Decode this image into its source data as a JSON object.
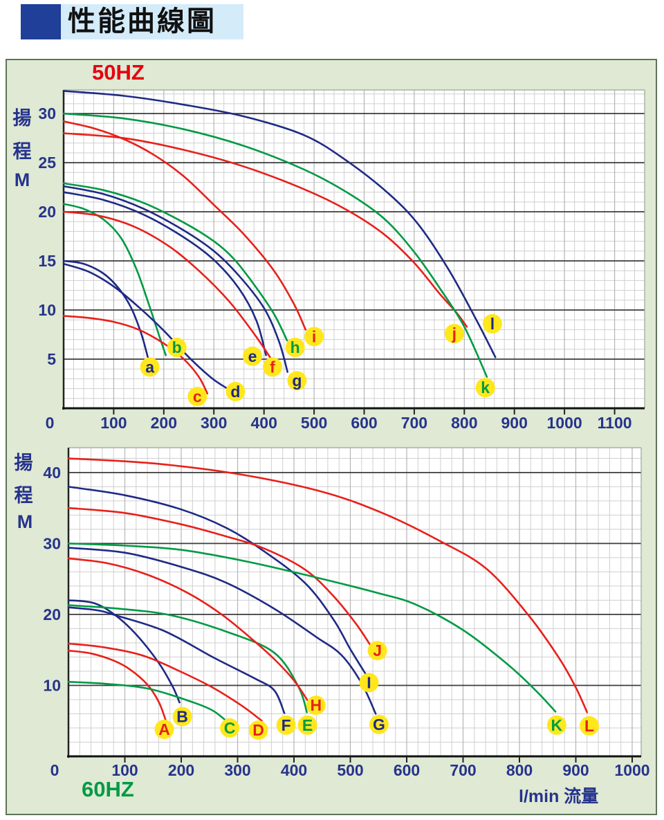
{
  "title": "性能曲線圖",
  "colors": {
    "navy": "#1e2a85",
    "green": "#009a44",
    "red": "#e8201a",
    "label_circle": "#ffe71c",
    "axis_text": "#26338c",
    "grid_minor": "#cfcfcf",
    "grid_100": "#b4b4b4",
    "grid_major": "#3c3c3c",
    "panel_bg": "#dfe9d3",
    "title_band": "#d4ebfa",
    "title_square": "#203f99",
    "hz50": "#e60012",
    "hz60": "#009a44"
  },
  "chart_data": [
    {
      "type": "line",
      "title": "50HZ",
      "ylabel_chars": [
        "揚",
        "程"
      ],
      "ylabel_unit": "M",
      "xlabel": "",
      "x_unit": "l/min",
      "xlim": [
        0,
        1160
      ],
      "ylim": [
        0,
        32.4
      ],
      "x_ticks": [
        0,
        100,
        200,
        300,
        400,
        500,
        600,
        700,
        800,
        900,
        1000,
        1100
      ],
      "y_ticks": [
        5,
        10,
        15,
        20,
        25,
        30
      ],
      "grid": {
        "minor_x": 20,
        "minor_y": 1,
        "major_y": 5,
        "x_major": 100
      },
      "series": [
        {
          "name": "a",
          "color": "navy",
          "label_pos": [
            172,
            4.2
          ],
          "points": [
            [
              0,
              15
            ],
            [
              40,
              14.7
            ],
            [
              80,
              13.7
            ],
            [
              110,
              12.2
            ],
            [
              135,
              10.2
            ],
            [
              155,
              7.6
            ],
            [
              168,
              5.2
            ]
          ]
        },
        {
          "name": "b",
          "color": "green",
          "label_pos": [
            226,
            6.2
          ],
          "points": [
            [
              0,
              20.8
            ],
            [
              40,
              20.3
            ],
            [
              80,
              19.2
            ],
            [
              115,
              17.3
            ],
            [
              145,
              14.2
            ],
            [
              170,
              10.6
            ],
            [
              192,
              7.2
            ],
            [
              204,
              5.4
            ]
          ]
        },
        {
          "name": "c",
          "color": "red",
          "label_pos": [
            267,
            1.2
          ],
          "points": [
            [
              0,
              9.4
            ],
            [
              50,
              9.2
            ],
            [
              100,
              8.8
            ],
            [
              150,
              8
            ],
            [
              200,
              6.6
            ],
            [
              240,
              5
            ],
            [
              270,
              3.2
            ],
            [
              287,
              1.5
            ]
          ]
        },
        {
          "name": "d",
          "color": "navy",
          "label_pos": [
            343,
            1.7
          ],
          "points": [
            [
              0,
              14.7
            ],
            [
              50,
              13.9
            ],
            [
              100,
              12.4
            ],
            [
              150,
              10.3
            ],
            [
              200,
              7.9
            ],
            [
              250,
              5.2
            ],
            [
              295,
              3.1
            ],
            [
              327,
              2
            ]
          ]
        },
        {
          "name": "e",
          "color": "navy",
          "label_pos": [
            377,
            5.3
          ],
          "points": [
            [
              0,
              22
            ],
            [
              80,
              21.2
            ],
            [
              160,
              19.7
            ],
            [
              240,
              17.4
            ],
            [
              300,
              15.1
            ],
            [
              350,
              12.2
            ],
            [
              385,
              8.9
            ],
            [
              404,
              5.4
            ]
          ]
        },
        {
          "name": "f",
          "color": "red",
          "label_pos": [
            417,
            4.2
          ],
          "points": [
            [
              0,
              20
            ],
            [
              70,
              19.6
            ],
            [
              140,
              18.5
            ],
            [
              210,
              16.5
            ],
            [
              270,
              14
            ],
            [
              330,
              10.9
            ],
            [
              380,
              7.6
            ],
            [
              412,
              5.2
            ],
            [
              425,
              4.1
            ]
          ]
        },
        {
          "name": "g",
          "color": "navy",
          "label_pos": [
            466,
            2.8
          ],
          "points": [
            [
              0,
              22.6
            ],
            [
              80,
              21.8
            ],
            [
              160,
              20.3
            ],
            [
              240,
              18.1
            ],
            [
              300,
              16
            ],
            [
              350,
              13.5
            ],
            [
              400,
              10.2
            ],
            [
              430,
              6.8
            ],
            [
              447,
              3.7
            ]
          ]
        },
        {
          "name": "h",
          "color": "green",
          "label_pos": [
            462,
            6.2
          ],
          "points": [
            [
              0,
              22.9
            ],
            [
              80,
              22.2
            ],
            [
              160,
              20.9
            ],
            [
              240,
              18.9
            ],
            [
              300,
              17
            ],
            [
              340,
              15.2
            ],
            [
              380,
              12.6
            ],
            [
              420,
              9.6
            ],
            [
              446,
              6.9
            ]
          ]
        },
        {
          "name": "i",
          "color": "red",
          "label_pos": [
            500,
            7.3
          ],
          "points": [
            [
              0,
              29.2
            ],
            [
              60,
              28.5
            ],
            [
              120,
              27.4
            ],
            [
              180,
              25.8
            ],
            [
              240,
              23.6
            ],
            [
              300,
              20.7
            ],
            [
              360,
              17.7
            ],
            [
              420,
              14
            ],
            [
              460,
              10.6
            ],
            [
              483,
              8
            ]
          ]
        },
        {
          "name": "j",
          "color": "red",
          "label_pos": [
            780,
            7.6
          ],
          "points": [
            [
              0,
              28
            ],
            [
              120,
              27.5
            ],
            [
              240,
              26.3
            ],
            [
              360,
              24.6
            ],
            [
              480,
              22.3
            ],
            [
              565,
              20.2
            ],
            [
              640,
              17.7
            ],
            [
              700,
              14.8
            ],
            [
              750,
              11.7
            ],
            [
              785,
              9.7
            ],
            [
              805,
              8.3
            ]
          ]
        },
        {
          "name": "k",
          "color": "green",
          "label_pos": [
            842,
            2.1
          ],
          "points": [
            [
              0,
              30
            ],
            [
              120,
              29.5
            ],
            [
              240,
              28.4
            ],
            [
              360,
              26.7
            ],
            [
              480,
              24.3
            ],
            [
              565,
              22
            ],
            [
              640,
              19.3
            ],
            [
              700,
              15.9
            ],
            [
              750,
              12.3
            ],
            [
              800,
              8.3
            ],
            [
              845,
              3.2
            ]
          ]
        },
        {
          "name": "l",
          "color": "navy",
          "label_pos": [
            856,
            8.6
          ],
          "points": [
            [
              0,
              32.3
            ],
            [
              120,
              31.8
            ],
            [
              240,
              30.9
            ],
            [
              360,
              29.7
            ],
            [
              480,
              27.8
            ],
            [
              565,
              25.2
            ],
            [
              650,
              21.8
            ],
            [
              710,
              18.6
            ],
            [
              770,
              14
            ],
            [
              825,
              8.9
            ],
            [
              862,
              5.2
            ]
          ]
        }
      ]
    },
    {
      "type": "line",
      "title": "60HZ",
      "ylabel_chars": [
        "揚",
        "程"
      ],
      "ylabel_unit": "M",
      "xlabel": "l/min 流量",
      "x_unit": "l/min",
      "xlim": [
        0,
        1016
      ],
      "ylim": [
        0,
        43.5
      ],
      "x_ticks": [
        0,
        100,
        200,
        300,
        400,
        500,
        600,
        700,
        800,
        900,
        1000
      ],
      "y_ticks": [
        10,
        20,
        30,
        40
      ],
      "grid": {
        "minor_x": 20,
        "minor_y": 2,
        "major_y": 10,
        "x_major": 100
      },
      "series": [
        {
          "name": "A",
          "color": "red",
          "label_pos": [
            170,
            3.8
          ],
          "points": [
            [
              0,
              14.9
            ],
            [
              40,
              14.5
            ],
            [
              80,
              13.5
            ],
            [
              110,
              12.2
            ],
            [
              140,
              10.1
            ],
            [
              160,
              7.7
            ],
            [
              172,
              5.2
            ]
          ]
        },
        {
          "name": "B",
          "color": "navy",
          "label_pos": [
            202,
            5.6
          ],
          "points": [
            [
              0,
              22
            ],
            [
              45,
              21.6
            ],
            [
              83,
              19.9
            ],
            [
              120,
              17.2
            ],
            [
              160,
              13.2
            ],
            [
              185,
              9.8
            ],
            [
              197,
              7.6
            ]
          ]
        },
        {
          "name": "C",
          "color": "green",
          "label_pos": [
            286,
            4
          ],
          "points": [
            [
              0,
              10.5
            ],
            [
              70,
              10.2
            ],
            [
              144,
              9.5
            ],
            [
              218,
              7.7
            ],
            [
              255,
              6.5
            ],
            [
              280,
              5
            ]
          ]
        },
        {
          "name": "D",
          "color": "red",
          "label_pos": [
            337,
            3.7
          ],
          "points": [
            [
              0,
              15.9
            ],
            [
              60,
              15.4
            ],
            [
              132,
              14.2
            ],
            [
              200,
              11.9
            ],
            [
              258,
              9.6
            ],
            [
              310,
              7
            ],
            [
              343,
              5
            ]
          ]
        },
        {
          "name": "E",
          "color": "green",
          "label_pos": [
            424,
            4.4
          ],
          "points": [
            [
              0,
              21.3
            ],
            [
              90,
              20.8
            ],
            [
              181,
              19.9
            ],
            [
              283,
              17.5
            ],
            [
              365,
              14.6
            ],
            [
              408,
              9.8
            ],
            [
              423,
              6.2
            ]
          ]
        },
        {
          "name": "F",
          "color": "navy",
          "label_pos": [
            386,
            4.4
          ],
          "points": [
            [
              0,
              21
            ],
            [
              50,
              20.6
            ],
            [
              83,
              19.9
            ],
            [
              169,
              17.7
            ],
            [
              258,
              13.9
            ],
            [
              330,
              11
            ],
            [
              365,
              9.3
            ],
            [
              383,
              6.1
            ]
          ]
        },
        {
          "name": "G",
          "color": "navy",
          "label_pos": [
            551,
            4.5
          ],
          "points": [
            [
              0,
              29.4
            ],
            [
              100,
              28.7
            ],
            [
              200,
              26.7
            ],
            [
              279,
              24.5
            ],
            [
              365,
              20.8
            ],
            [
              440,
              16.8
            ],
            [
              484,
              14.3
            ],
            [
              520,
              10.3
            ],
            [
              545,
              6
            ]
          ]
        },
        {
          "name": "H",
          "color": "red",
          "label_pos": [
            439,
            7.2
          ],
          "points": [
            [
              0,
              27.9
            ],
            [
              70,
              27.2
            ],
            [
              140,
              25.6
            ],
            [
              210,
              23.1
            ],
            [
              270,
              20.1
            ],
            [
              320,
              16.9
            ],
            [
              365,
              13.7
            ],
            [
              400,
              10.7
            ],
            [
              424,
              7.9
            ]
          ]
        },
        {
          "name": "I",
          "color": "navy",
          "label_pos": [
            533,
            10.4
          ],
          "points": [
            [
              0,
              38
            ],
            [
              100,
              36.8
            ],
            [
              200,
              34.8
            ],
            [
              280,
              32.2
            ],
            [
              347,
              28.9
            ],
            [
              420,
              24.4
            ],
            [
              470,
              19.3
            ],
            [
              500,
              15.1
            ],
            [
              528,
              11.5
            ]
          ]
        },
        {
          "name": "J",
          "color": "red",
          "label_pos": [
            548,
            14.9
          ],
          "points": [
            [
              0,
              35
            ],
            [
              100,
              34.3
            ],
            [
              200,
              32.7
            ],
            [
              280,
              31
            ],
            [
              347,
              29.3
            ],
            [
              420,
              26.3
            ],
            [
              470,
              22.6
            ],
            [
              510,
              18.7
            ],
            [
              537,
              15.5
            ]
          ]
        },
        {
          "name": "K",
          "color": "green",
          "label_pos": [
            866,
            4.4
          ],
          "points": [
            [
              0,
              30
            ],
            [
              100,
              29.7
            ],
            [
              200,
              29.1
            ],
            [
              320,
              27.4
            ],
            [
              440,
              25.2
            ],
            [
              550,
              23
            ],
            [
              616,
              21.4
            ],
            [
              700,
              17.8
            ],
            [
              780,
              12.9
            ],
            [
              830,
              9.2
            ],
            [
              864,
              6.3
            ]
          ]
        },
        {
          "name": "L",
          "color": "red",
          "label_pos": [
            924,
            4.3
          ],
          "points": [
            [
              0,
              42
            ],
            [
              150,
              41.3
            ],
            [
              300,
              39.8
            ],
            [
              450,
              37.3
            ],
            [
              560,
              34.2
            ],
            [
              660,
              30.3
            ],
            [
              742,
              26.4
            ],
            [
              817,
              19.8
            ],
            [
              870,
              13.9
            ],
            [
              900,
              9.7
            ],
            [
              920,
              6.2
            ]
          ]
        }
      ]
    }
  ]
}
